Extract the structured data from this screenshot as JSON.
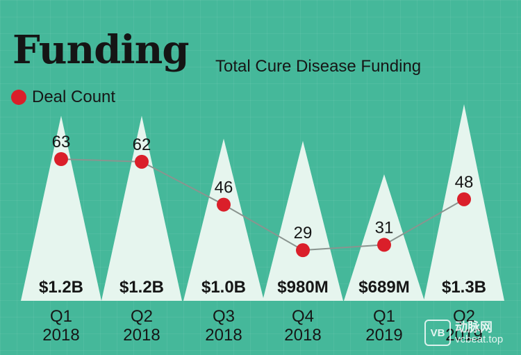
{
  "chart_data": {
    "type": "line",
    "title": "Funding",
    "subtitle": "Total Cure Disease Funding",
    "legend": {
      "entries": [
        "Deal Count"
      ],
      "placement": "top-left"
    },
    "categories": [
      {
        "period": "Q1",
        "year": "2018"
      },
      {
        "period": "Q2",
        "year": "2018"
      },
      {
        "period": "Q3",
        "year": "2018"
      },
      {
        "period": "Q4",
        "year": "2018"
      },
      {
        "period": "Q1",
        "year": "2019"
      },
      {
        "period": "Q2",
        "year": "2019"
      }
    ],
    "series": [
      {
        "name": "Deal Count",
        "values": [
          63,
          62,
          46,
          29,
          31,
          48
        ]
      }
    ],
    "funding_labels": [
      "$1.2B",
      "$1.2B",
      "$1.0B",
      "$980M",
      "$689M",
      "$1.3B"
    ],
    "funding_values_usd_millions": [
      1200,
      1200,
      1000,
      980,
      689,
      1300
    ],
    "grid": true,
    "y_hidden": true,
    "colors": {
      "background": "#45B89A",
      "mountain": "#E6F5EE",
      "line": "#8A948F",
      "point": "#DA1F2A",
      "text": "#161616"
    }
  },
  "watermark": {
    "logo_text": "VB",
    "brand": "动脉网",
    "url": "vcbeat.top"
  }
}
